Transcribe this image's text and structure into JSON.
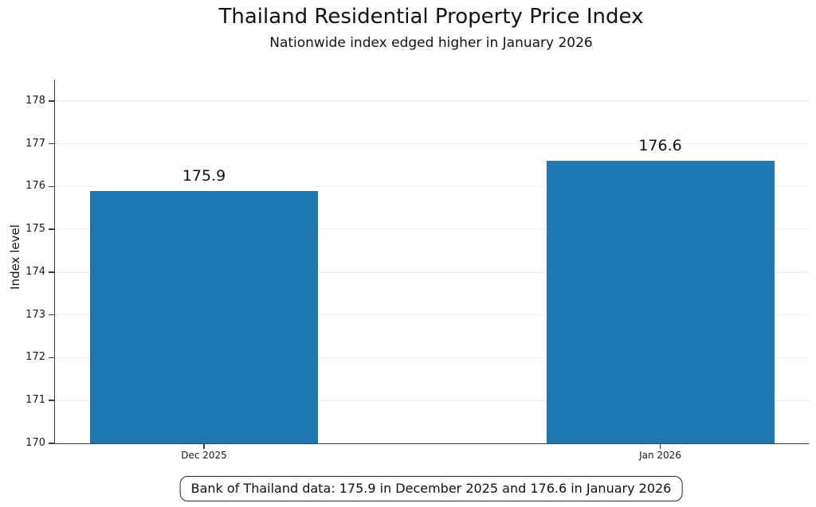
{
  "chart_data": {
    "type": "bar",
    "title": "Thailand Residential Property Price Index",
    "subtitle": "Nationwide index edged higher in January 2026",
    "ylabel": "Index level",
    "xlabel": "",
    "categories": [
      "Dec 2025",
      "Jan 2026"
    ],
    "values": [
      175.9,
      176.6
    ],
    "value_labels": [
      "175.9",
      "176.6"
    ],
    "ylim": [
      170,
      178.5
    ],
    "yticks": [
      170,
      171,
      172,
      173,
      174,
      175,
      176,
      177,
      178
    ],
    "grid": true,
    "bar_color": "#1f77b4",
    "bar_centers_frac": [
      0.1977,
      0.8029
    ],
    "bar_width_frac": 0.3023,
    "annotation": "Bank of Thailand data: 175.9 in December 2025 and 176.6 in January 2026"
  }
}
